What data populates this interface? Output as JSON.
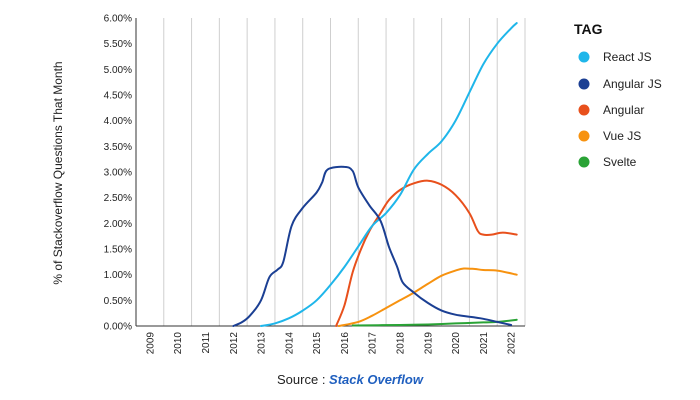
{
  "chart_data": {
    "type": "line",
    "title": "",
    "xlabel": "",
    "ylabel": "% of Stackoverflow Questions That Month",
    "x_tick_labels": [
      "2009",
      "2010",
      "2011",
      "2012",
      "2013",
      "2014",
      "2015",
      "2016",
      "2017",
      "2018",
      "2019",
      "2020",
      "2021",
      "2022"
    ],
    "y_tick_labels": [
      "0.00%",
      "0.50%",
      "1.00%",
      "1.50%",
      "2.00%",
      "2.50%",
      "3.00%",
      "3.50%",
      "4.00%",
      "4.50%",
      "5.00%",
      "5.50%",
      "6.00%"
    ],
    "xlim": [
      2008.5,
      2022.5
    ],
    "ylim": [
      0,
      6
    ],
    "grid": "vertical",
    "legend": {
      "title": "TAG",
      "placement": "right"
    },
    "series": [
      {
        "name": "React JS",
        "color": "#1fb6ea",
        "points": [
          [
            2013.0,
            0.0
          ],
          [
            2013.5,
            0.05
          ],
          [
            2014.0,
            0.15
          ],
          [
            2014.5,
            0.3
          ],
          [
            2015.0,
            0.5
          ],
          [
            2015.5,
            0.8
          ],
          [
            2016.0,
            1.15
          ],
          [
            2016.5,
            1.55
          ],
          [
            2017.0,
            1.95
          ],
          [
            2017.5,
            2.2
          ],
          [
            2018.0,
            2.55
          ],
          [
            2018.5,
            3.05
          ],
          [
            2019.0,
            3.35
          ],
          [
            2019.5,
            3.6
          ],
          [
            2020.0,
            4.0
          ],
          [
            2020.5,
            4.55
          ],
          [
            2021.0,
            5.1
          ],
          [
            2021.5,
            5.5
          ],
          [
            2022.0,
            5.8
          ],
          [
            2022.2,
            5.9
          ]
        ]
      },
      {
        "name": "Angular JS",
        "color": "#1b3f93",
        "points": [
          [
            2012.0,
            0.0
          ],
          [
            2012.3,
            0.07
          ],
          [
            2012.6,
            0.2
          ],
          [
            2013.0,
            0.5
          ],
          [
            2013.3,
            0.95
          ],
          [
            2013.6,
            1.1
          ],
          [
            2013.8,
            1.25
          ],
          [
            2014.1,
            1.95
          ],
          [
            2014.5,
            2.3
          ],
          [
            2015.0,
            2.6
          ],
          [
            2015.2,
            2.8
          ],
          [
            2015.4,
            3.05
          ],
          [
            2016.0,
            3.1
          ],
          [
            2016.3,
            3.02
          ],
          [
            2016.5,
            2.7
          ],
          [
            2016.9,
            2.35
          ],
          [
            2017.3,
            2.05
          ],
          [
            2017.6,
            1.55
          ],
          [
            2017.9,
            1.15
          ],
          [
            2018.1,
            0.85
          ],
          [
            2018.5,
            0.65
          ],
          [
            2019.0,
            0.45
          ],
          [
            2019.5,
            0.3
          ],
          [
            2020.0,
            0.22
          ],
          [
            2020.5,
            0.18
          ],
          [
            2021.0,
            0.14
          ],
          [
            2021.5,
            0.08
          ],
          [
            2022.0,
            0.02
          ]
        ]
      },
      {
        "name": "Angular",
        "color": "#e8501c",
        "points": [
          [
            2015.7,
            0.0
          ],
          [
            2016.0,
            0.4
          ],
          [
            2016.3,
            1.05
          ],
          [
            2016.6,
            1.5
          ],
          [
            2016.9,
            1.85
          ],
          [
            2017.3,
            2.2
          ],
          [
            2017.6,
            2.45
          ],
          [
            2018.0,
            2.65
          ],
          [
            2018.5,
            2.78
          ],
          [
            2019.0,
            2.83
          ],
          [
            2019.5,
            2.75
          ],
          [
            2020.0,
            2.55
          ],
          [
            2020.5,
            2.2
          ],
          [
            2020.8,
            1.85
          ],
          [
            2021.0,
            1.78
          ],
          [
            2021.3,
            1.78
          ],
          [
            2021.7,
            1.82
          ],
          [
            2022.2,
            1.78
          ]
        ]
      },
      {
        "name": "Vue JS",
        "color": "#f7920f",
        "points": [
          [
            2015.8,
            0.0
          ],
          [
            2016.5,
            0.08
          ],
          [
            2017.0,
            0.2
          ],
          [
            2017.5,
            0.35
          ],
          [
            2018.0,
            0.5
          ],
          [
            2018.5,
            0.65
          ],
          [
            2019.0,
            0.82
          ],
          [
            2019.5,
            0.98
          ],
          [
            2020.0,
            1.08
          ],
          [
            2020.3,
            1.12
          ],
          [
            2020.7,
            1.11
          ],
          [
            2021.0,
            1.09
          ],
          [
            2021.5,
            1.08
          ],
          [
            2022.2,
            1.0
          ]
        ]
      },
      {
        "name": "Svelte",
        "color": "#2aa336",
        "points": [
          [
            2016.3,
            0.01
          ],
          [
            2018.0,
            0.02
          ],
          [
            2019.0,
            0.03
          ],
          [
            2020.0,
            0.05
          ],
          [
            2021.0,
            0.07
          ],
          [
            2021.5,
            0.08
          ],
          [
            2022.2,
            0.12
          ]
        ]
      }
    ],
    "source": {
      "prefix": "Source : ",
      "name": "Stack Overflow"
    }
  }
}
